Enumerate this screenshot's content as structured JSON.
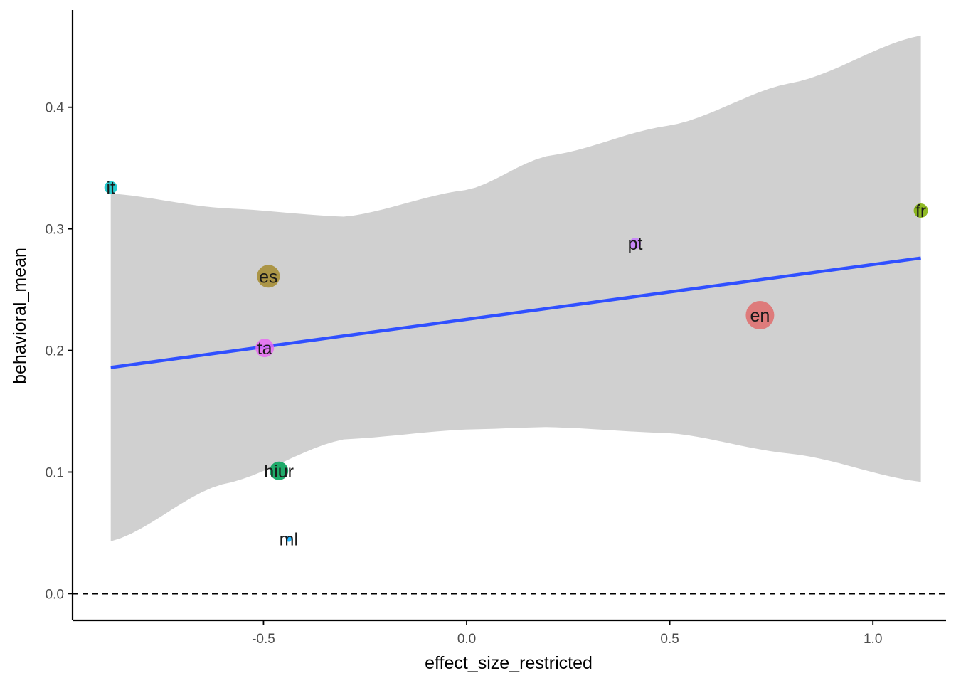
{
  "chart_data": {
    "type": "scatter",
    "title": "",
    "xlabel": "effect_size_restricted",
    "ylabel": "behavioral_mean",
    "xlim": [
      -0.97,
      1.18
    ],
    "ylim": [
      -0.022,
      0.48
    ],
    "x_ticks": [
      -0.5,
      0.0,
      0.5,
      1.0
    ],
    "x_tick_labels": [
      "-0.5",
      "0.0",
      "0.5",
      "1.0"
    ],
    "y_ticks": [
      0.0,
      0.1,
      0.2,
      0.3,
      0.4
    ],
    "y_tick_labels": [
      "0.0",
      "0.1",
      "0.2",
      "0.3",
      "0.4"
    ],
    "grid": false,
    "reference_line": {
      "y": 0.0,
      "style": "dashed",
      "color": "#000000"
    },
    "points": [
      {
        "label": "it",
        "x": -0.876,
        "y": 0.334,
        "size": 9,
        "color": "#00BFC4"
      },
      {
        "label": "es",
        "x": -0.488,
        "y": 0.261,
        "size": 16,
        "color": "#A58B2E"
      },
      {
        "label": "ta",
        "x": -0.497,
        "y": 0.202,
        "size": 13,
        "color": "#E76BF3"
      },
      {
        "label": "hi",
        "x": -0.462,
        "y": 0.101,
        "size": 13,
        "color": "#C77CFF"
      },
      {
        "label": "ur",
        "x": -0.462,
        "y": 0.101,
        "size": 13,
        "color": "#00B050"
      },
      {
        "label": "ml",
        "x": -0.438,
        "y": 0.045,
        "size": 4,
        "color": "#00A9FF"
      },
      {
        "label": "pt",
        "x": 0.415,
        "y": 0.288,
        "size": 8,
        "color": "#C77CFF"
      },
      {
        "label": "en",
        "x": 0.722,
        "y": 0.229,
        "size": 20,
        "color": "#E06C6C"
      },
      {
        "label": "fr",
        "x": 1.118,
        "y": 0.315,
        "size": 10,
        "color": "#7CAE00"
      }
    ],
    "fit_line": {
      "color": "#3050FF",
      "x": [
        -0.876,
        1.118
      ],
      "y": [
        0.186,
        0.276
      ]
    },
    "confidence_band": {
      "color": "#D0D0D0",
      "x": [
        -0.876,
        -0.6,
        -0.3,
        0.0,
        0.2,
        0.5,
        0.8,
        1.118
      ],
      "upper": [
        0.329,
        0.317,
        0.31,
        0.332,
        0.36,
        0.385,
        0.42,
        0.459
      ],
      "lower": [
        0.043,
        0.09,
        0.127,
        0.135,
        0.137,
        0.132,
        0.115,
        0.092
      ]
    }
  }
}
